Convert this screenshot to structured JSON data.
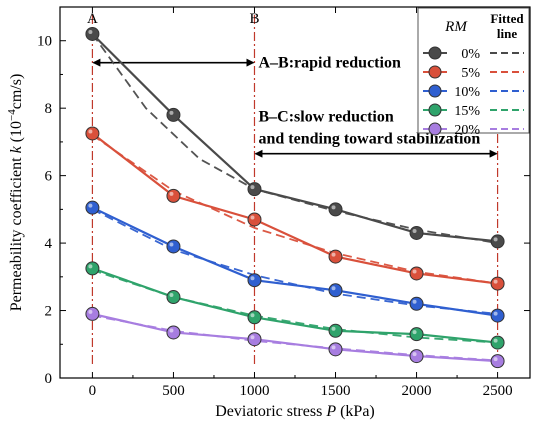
{
  "chart_data": {
    "type": "line",
    "xlabel_prefix": "Deviatoric stress ",
    "xlabel_var": "P",
    "xlabel_unit": " (kPa)",
    "ylabel_prefix": "Permeability coefficient ",
    "ylabel_var": "k",
    "ylabel_unit_open": " (10",
    "ylabel_unit_exp": "−4",
    "ylabel_unit_close": "cm/s)",
    "xlim": [
      -200,
      2700
    ],
    "ylim": [
      0,
      11
    ],
    "xticks": [
      0,
      500,
      1000,
      1500,
      2000,
      2500
    ],
    "yticks": [
      0,
      2,
      4,
      6,
      8,
      10
    ],
    "x": [
      0,
      500,
      1000,
      1500,
      2000,
      2500
    ],
    "grid": false,
    "legend_title": "RM",
    "legend_fitted_label": [
      "Fitted",
      "line"
    ],
    "legend_position": "top-right",
    "series": [
      {
        "name": "0%",
        "color": "#4a4a4a",
        "values": [
          10.2,
          7.8,
          5.6,
          5.0,
          4.3,
          4.05
        ],
        "fitted": [
          [
            0,
            10.2
          ],
          [
            330,
            8.0
          ],
          [
            660,
            6.5
          ],
          [
            1000,
            5.6
          ],
          [
            1500,
            4.95
          ],
          [
            2000,
            4.4
          ],
          [
            2500,
            4.0
          ]
        ]
      },
      {
        "name": "5%",
        "color": "#d9503b",
        "values": [
          7.25,
          5.4,
          4.7,
          3.6,
          3.1,
          2.8
        ],
        "fitted": [
          [
            0,
            7.2
          ],
          [
            500,
            5.55
          ],
          [
            1000,
            4.45
          ],
          [
            1500,
            3.7
          ],
          [
            2000,
            3.15
          ],
          [
            2500,
            2.8
          ]
        ]
      },
      {
        "name": "10%",
        "color": "#2f5fd0",
        "values": [
          5.05,
          3.9,
          2.9,
          2.6,
          2.2,
          1.85
        ],
        "fitted": [
          [
            0,
            5.0
          ],
          [
            500,
            3.8
          ],
          [
            1000,
            3.05
          ],
          [
            1500,
            2.5
          ],
          [
            2000,
            2.15
          ],
          [
            2500,
            1.9
          ]
        ]
      },
      {
        "name": "15%",
        "color": "#2fa36b",
        "values": [
          3.25,
          2.4,
          1.8,
          1.4,
          1.3,
          1.05
        ],
        "fitted": [
          [
            0,
            3.2
          ],
          [
            500,
            2.4
          ],
          [
            1000,
            1.85
          ],
          [
            1500,
            1.45
          ],
          [
            2000,
            1.2
          ],
          [
            2500,
            1.05
          ]
        ]
      },
      {
        "name": "20%",
        "color": "#a77de0",
        "values": [
          1.9,
          1.35,
          1.15,
          0.85,
          0.65,
          0.5
        ],
        "fitted": [
          [
            0,
            1.85
          ],
          [
            500,
            1.4
          ],
          [
            1000,
            1.1
          ],
          [
            1500,
            0.88
          ],
          [
            2000,
            0.68
          ],
          [
            2500,
            0.52
          ]
        ]
      }
    ],
    "vlines": [
      {
        "x": 0,
        "label": "A"
      },
      {
        "x": 1000,
        "label": "B"
      },
      {
        "x": 2500,
        "label": ""
      }
    ],
    "vline_color": "#c0392b",
    "annotations": [
      {
        "text": "A–B:rapid reduction",
        "arrow": [
          0,
          1000
        ],
        "arrow_y": 9.35
      },
      {
        "text_lines": [
          "B–C:slow reduction",
          "and tending toward stabilization"
        ],
        "arrow": [
          1000,
          2500
        ],
        "arrow_y": 6.65
      }
    ]
  }
}
